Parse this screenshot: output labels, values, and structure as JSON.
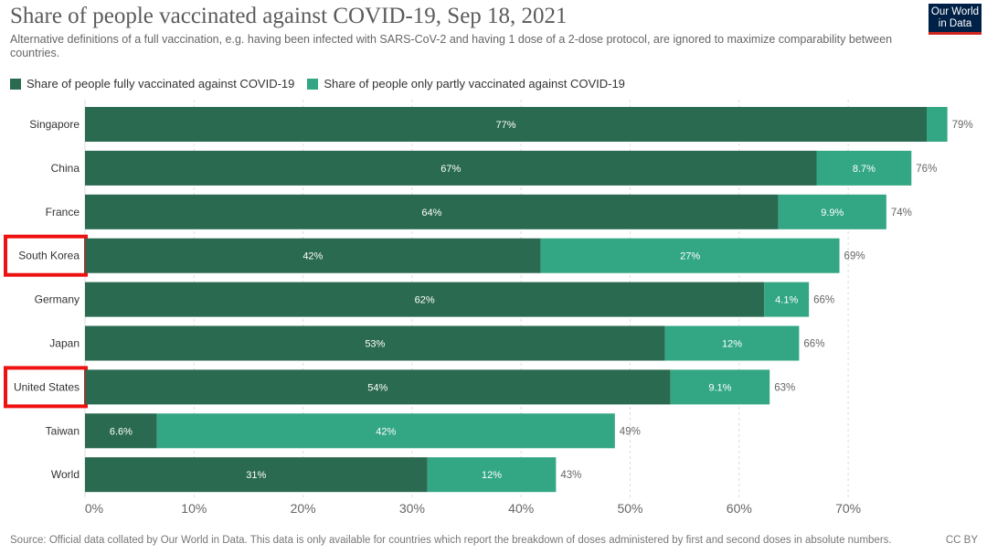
{
  "title": "Share of people vaccinated against COVID-19, Sep 18, 2021",
  "subtitle": "Alternative definitions of a full vaccination, e.g. having been infected with SARS-CoV-2 and having 1 dose of a 2-dose protocol, are ignored to maximize comparability between countries.",
  "logo": {
    "line1": "Our World",
    "line2": "in Data"
  },
  "footer": {
    "source": "Source: Official data collated by Our World in Data. This data is only available for countries which report the breakdown of doses administered by first and second doses in absolute numbers.",
    "license": "CC BY"
  },
  "colors": {
    "fully": "#2a6a50",
    "partly": "#33a784",
    "highlight": "#ee1111",
    "grid": "#dddddd",
    "axis_text": "#666666",
    "label_text": "#333333"
  },
  "chart_data": {
    "type": "bar",
    "orientation": "horizontal",
    "stacked": true,
    "title": "Share of people vaccinated against COVID-19, Sep 18, 2021",
    "legend_position": "top-left",
    "series": [
      {
        "name": "Share of people fully vaccinated against COVID-19",
        "values": [
          77.2,
          67.1,
          63.6,
          41.8,
          62.3,
          53.2,
          53.7,
          6.6,
          31.4
        ],
        "labels": [
          "77%",
          "67%",
          "64%",
          "42%",
          "62%",
          "53%",
          "54%",
          "6.6%",
          "31%"
        ]
      },
      {
        "name": "Share of people only partly vaccinated against COVID-19",
        "values": [
          1.9,
          8.7,
          9.9,
          27.4,
          4.1,
          12.3,
          9.1,
          42.0,
          11.8
        ],
        "labels": [
          "",
          "8.7%",
          "9.9%",
          "27%",
          "4.1%",
          "12%",
          "9.1%",
          "42%",
          "12%"
        ]
      }
    ],
    "categories": [
      "Singapore",
      "China",
      "France",
      "South Korea",
      "Germany",
      "Japan",
      "United States",
      "Taiwan",
      "World"
    ],
    "totals": [
      "79%",
      "76%",
      "74%",
      "69%",
      "66%",
      "66%",
      "63%",
      "49%",
      "43%"
    ],
    "highlighted": [
      "South Korea",
      "United States"
    ],
    "xlim": [
      0,
      79
    ],
    "x_ticks": [
      0,
      10,
      20,
      30,
      40,
      50,
      60,
      70
    ],
    "x_tick_labels": [
      "0%",
      "10%",
      "20%",
      "30%",
      "40%",
      "50%",
      "60%",
      "70%"
    ],
    "grid": true
  }
}
